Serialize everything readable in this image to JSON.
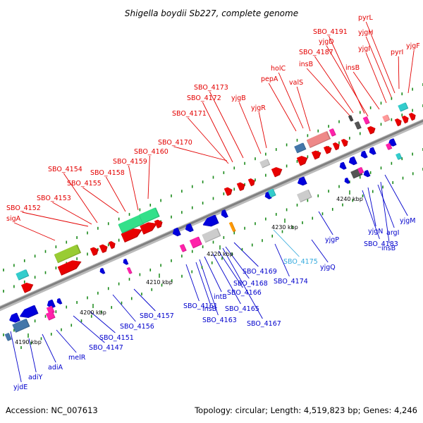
{
  "title": "Shigella boydii Sb227, complete genome",
  "footer": {
    "accession": "Accession: NC_007613",
    "summary": "Topology: circular; Length: 4,519,823 bp; Genes: 4,246"
  },
  "colors": {
    "forward_label": "#e30000",
    "reverse_label": "#0000cc",
    "rna_label": "#33aadd",
    "backbone": "#999999"
  },
  "axis": {
    "ticks": [
      "4190 kbp",
      "4200 kbp",
      "4210 kbp",
      "4220 kbp",
      "4230 kbp",
      "4240 kbp"
    ]
  },
  "genes_top": [
    "sigA",
    "SBO_4152",
    "SBO_4153",
    "SBO_4154",
    "SBO_4155",
    "SBO_4158",
    "SBO_4159",
    "SBO_4160",
    "SBO_4170",
    "SBO_4171",
    "SBO_4172",
    "SBO_4173",
    "yjgB",
    "yjgR",
    "pepA",
    "holC",
    "valS",
    "insB",
    "SBO_4187",
    "SBO_4191",
    "yjgD",
    "yjgI",
    "insB",
    "yjgH",
    "pyrL",
    "pyrI",
    "yjgF"
  ],
  "genes_bottom": [
    "yjdE",
    "adiY",
    "adiA",
    "melR",
    "SBO_4147",
    "SBO_4151",
    "SBO_4156",
    "SBO_4157",
    "SBO_4161",
    "insB",
    "SBO_4163",
    "intB",
    "SBO_4165",
    "SBO_4166",
    "SBO_4167",
    "SBO_4168",
    "SBO_4169",
    "SBO_4174",
    "SBO_4175",
    "yjgQ",
    "yjgP",
    "SBO_4183",
    "yjgN",
    "argI",
    "insB",
    "yjgM"
  ]
}
